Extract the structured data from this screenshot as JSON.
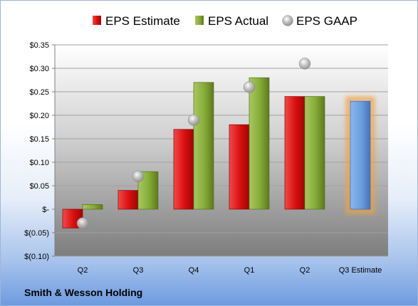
{
  "chart_data": {
    "type": "bar",
    "categories": [
      "Q2",
      "Q3",
      "Q4",
      "Q1",
      "Q2",
      "Q3 Estimate"
    ],
    "series": [
      {
        "name": "EPS Estimate",
        "kind": "bar",
        "color": "#e01010",
        "values": [
          -0.04,
          0.04,
          0.17,
          0.18,
          0.24,
          null
        ]
      },
      {
        "name": "EPS Actual",
        "kind": "bar",
        "color": "#8cb03c",
        "values": [
          0.01,
          0.08,
          0.27,
          0.28,
          0.24,
          null
        ]
      },
      {
        "name": "EPS GAAP",
        "kind": "marker",
        "color": "#b8b8b8",
        "values": [
          -0.03,
          0.07,
          0.19,
          0.26,
          0.31,
          null
        ]
      },
      {
        "name": "",
        "kind": "bar",
        "color": "#6a9ee0",
        "highlight": "#f0a040",
        "values": [
          null,
          null,
          null,
          null,
          null,
          0.23
        ]
      }
    ],
    "yticks": [
      "$0.35",
      "$0.30",
      "$0.25",
      "$0.20",
      "$0.15",
      "$0.10",
      "$0.05",
      "$-",
      "$(0.05)",
      "$(0.10)"
    ],
    "ylim": [
      -0.1,
      0.35
    ],
    "grid": true,
    "legend_position": "top"
  },
  "footer": {
    "company": "Smith & Wesson Holding"
  }
}
